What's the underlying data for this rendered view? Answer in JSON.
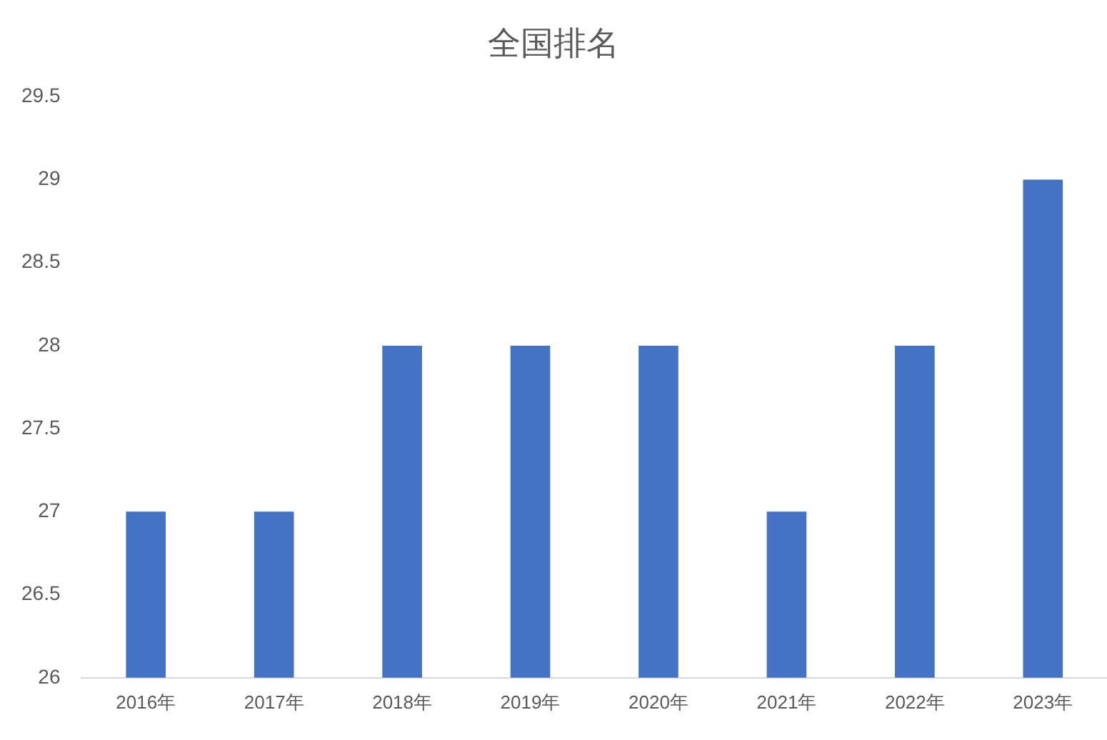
{
  "chart_data": {
    "type": "bar",
    "title": "全国排名",
    "categories": [
      "2016年",
      "2017年",
      "2018年",
      "2019年",
      "2020年",
      "2021年",
      "2022年",
      "2023年"
    ],
    "values": [
      27,
      27,
      28,
      28,
      28,
      27,
      28,
      29
    ],
    "color": "#4472c4",
    "ylim": [
      26,
      29.5
    ],
    "yticks": [
      26,
      26.5,
      27,
      27.5,
      28,
      28.5,
      29,
      29.5
    ]
  }
}
